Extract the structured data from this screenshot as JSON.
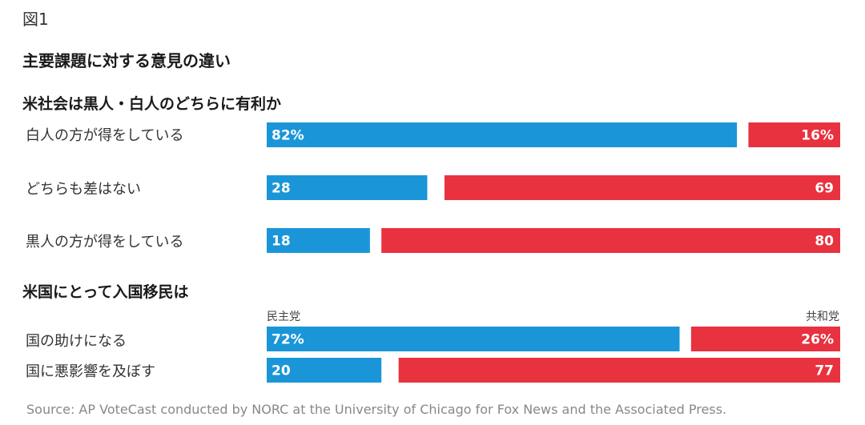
{
  "figure_label": "図1",
  "title": "主要課題に対する意見の違い",
  "source": "Source: AP VoteCast conducted by NORC at the University of Chicago for Fox News and the Associated Press.",
  "colors": {
    "dem": "#1a96d8",
    "rep": "#e8323f"
  },
  "chart_data": [
    {
      "type": "bar",
      "orientation": "horizontal-stacked",
      "title": "米社会は黒人・白人のどちらに有利か",
      "categories": [
        "白人の方が得をしている",
        "どちらも差はない",
        "黒人の方が得をしている"
      ],
      "series": [
        {
          "name": "",
          "color": "#1a96d8",
          "values": [
            82,
            28,
            18
          ],
          "labels": [
            "82%",
            "28",
            "18"
          ]
        },
        {
          "name": "",
          "color": "#e8323f",
          "values": [
            16,
            69,
            80
          ],
          "labels": [
            "16%",
            "69",
            "80"
          ]
        }
      ],
      "xlim": [
        0,
        100
      ]
    },
    {
      "type": "bar",
      "orientation": "horizontal-stacked",
      "title": "米国にとって入国移民は",
      "categories": [
        "国の助けになる",
        "国に悪影響を及ぼす"
      ],
      "series": [
        {
          "name": "民主党",
          "color": "#1a96d8",
          "values": [
            72,
            20
          ],
          "labels": [
            "72%",
            "20"
          ]
        },
        {
          "name": "共和党",
          "color": "#e8323f",
          "values": [
            26,
            77
          ],
          "labels": [
            "26%",
            "77"
          ]
        }
      ],
      "xlim": [
        0,
        100
      ]
    }
  ]
}
